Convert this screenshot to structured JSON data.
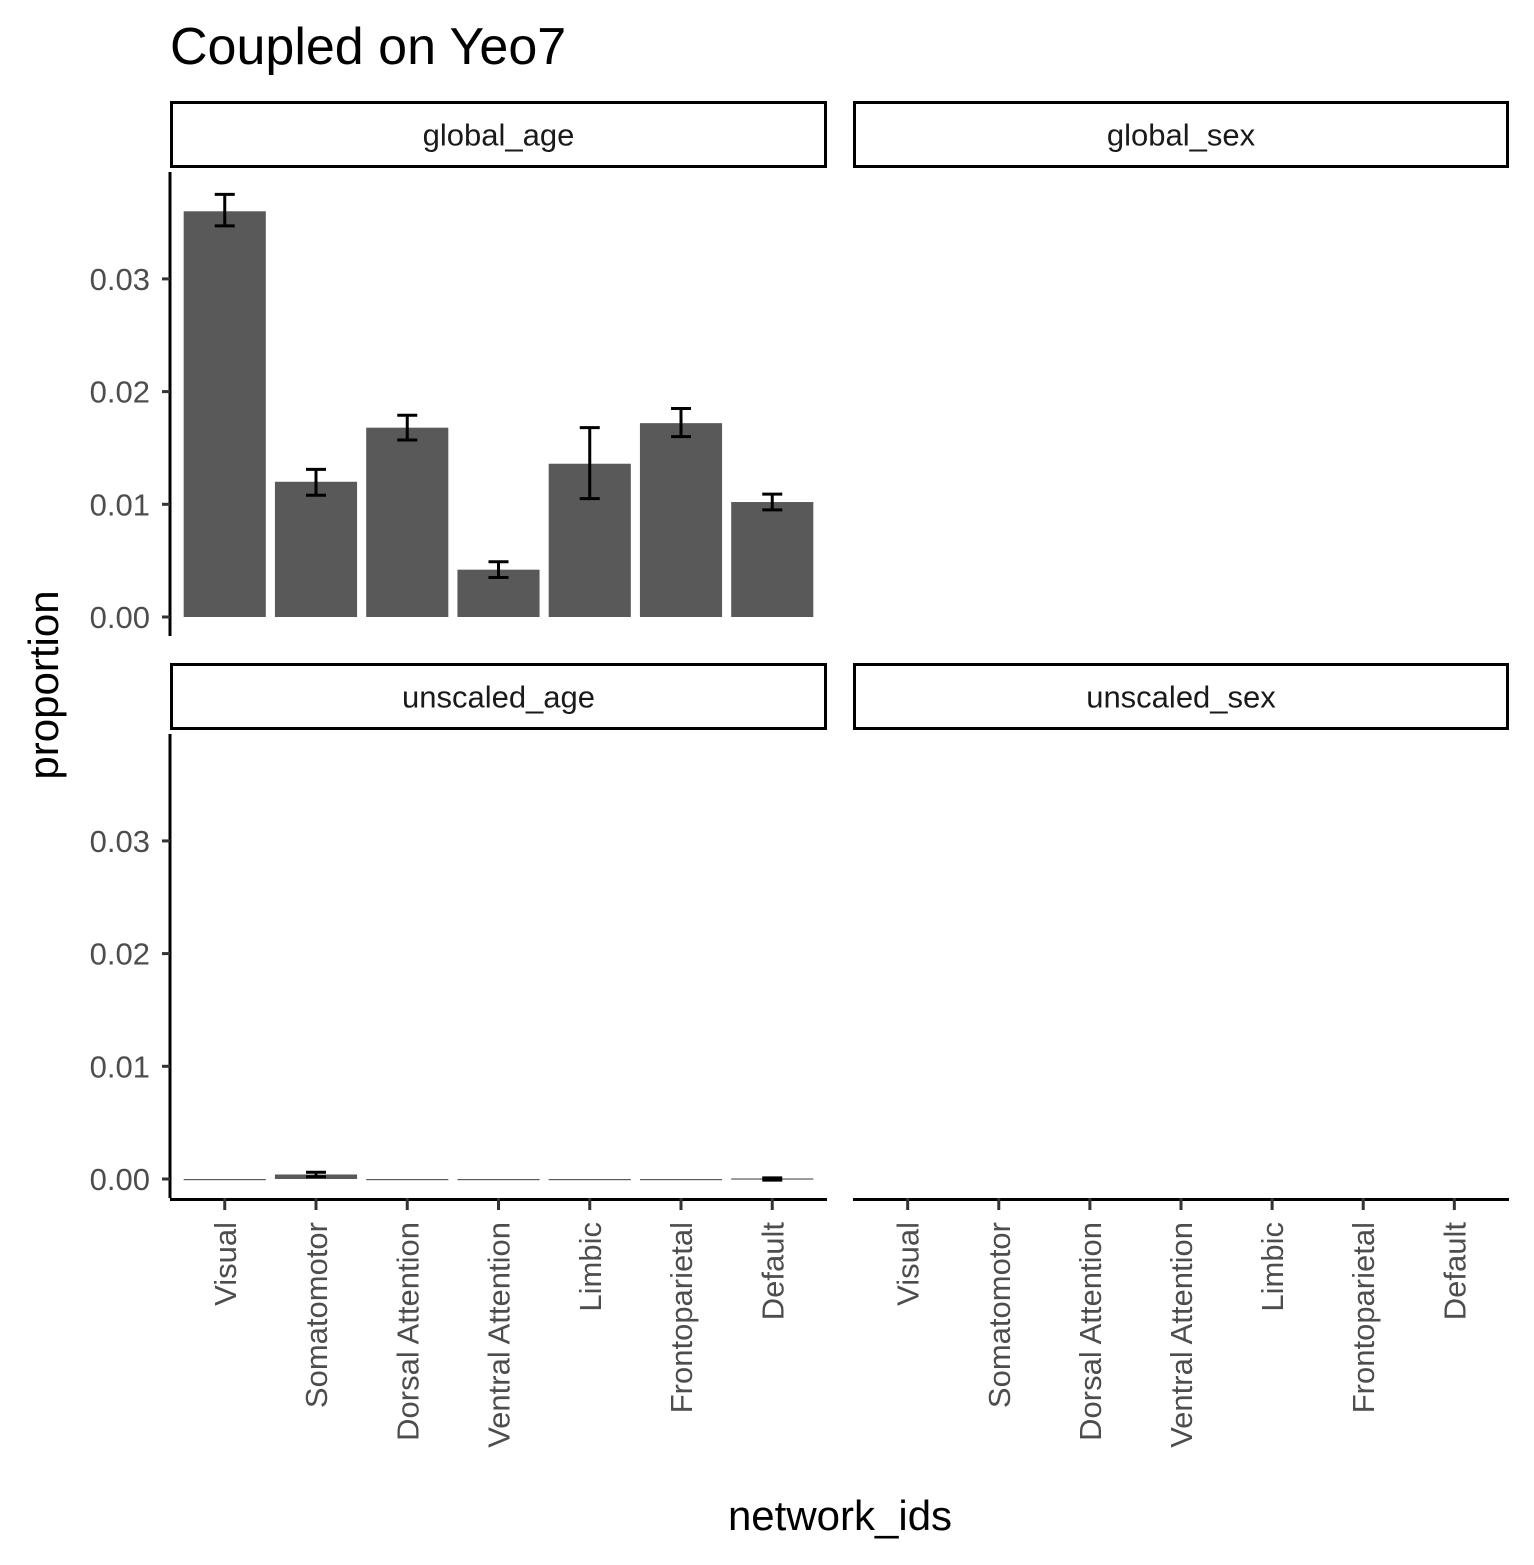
{
  "chart_data": {
    "type": "bar",
    "title": "Coupled on Yeo7",
    "xlabel": "network_ids",
    "ylabel": "proportion",
    "categories": [
      "Visual",
      "Somatomotor",
      "Dorsal Attention",
      "Ventral Attention",
      "Limbic",
      "Frontoparietal",
      "Default"
    ],
    "ylim": [
      -0.0017,
      0.039
    ],
    "y_ticks": [
      "0.00",
      "0.01",
      "0.02",
      "0.03"
    ],
    "y_tick_values": [
      0,
      0.01,
      0.02,
      0.03
    ],
    "grid": false,
    "bar_color": "#595959",
    "panels": [
      {
        "label": "global_age",
        "values": [
          0.036,
          0.012,
          0.0168,
          0.0042,
          0.0136,
          0.0172,
          0.0102
        ],
        "error_low": [
          0.0347,
          0.0108,
          0.0157,
          0.0035,
          0.0105,
          0.016,
          0.0095
        ],
        "error_high": [
          0.0375,
          0.0131,
          0.0179,
          0.0049,
          0.0168,
          0.0185,
          0.0109
        ]
      },
      {
        "label": "global_sex",
        "values": [],
        "error_low": [],
        "error_high": []
      },
      {
        "label": "unscaled_age",
        "values": [
          0,
          0.0004,
          0,
          0,
          0,
          0,
          5e-05
        ],
        "error_low": [
          0,
          0.0002,
          0,
          0,
          0,
          0,
          -0.0001
        ],
        "error_high": [
          0,
          0.0006,
          0,
          0,
          0,
          0,
          0.0001
        ]
      },
      {
        "label": "unscaled_sex",
        "values": [],
        "error_low": [],
        "error_high": []
      }
    ]
  }
}
